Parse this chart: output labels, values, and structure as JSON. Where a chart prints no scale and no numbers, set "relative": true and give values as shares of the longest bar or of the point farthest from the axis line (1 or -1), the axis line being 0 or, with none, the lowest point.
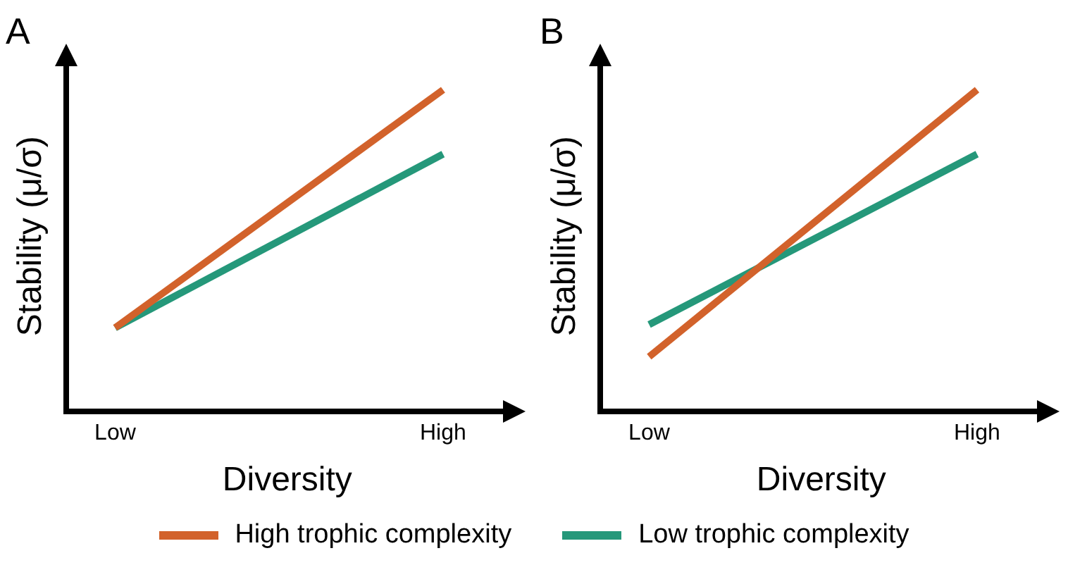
{
  "chart_data": [
    {
      "type": "line",
      "title": "A",
      "xlabel": "Diversity",
      "ylabel": "Stability (μ/σ)",
      "categories": [
        "Low",
        "High"
      ],
      "relative": true,
      "legend": "bottom",
      "grid": false,
      "marker": "none",
      "line_style": "solid",
      "series": [
        {
          "name": "High trophic complexity",
          "color": "#d2622b",
          "values": [
            0.26,
            1
          ]
        },
        {
          "name": "Low trophic complexity",
          "color": "#25987a",
          "values": [
            0.26,
            0.8
          ]
        }
      ]
    },
    {
      "type": "line",
      "title": "B",
      "xlabel": "Diversity",
      "ylabel": "Stability (μ/σ)",
      "categories": [
        "Low",
        "High"
      ],
      "relative": true,
      "grid": false,
      "marker": "none",
      "line_style": "solid",
      "series": [
        {
          "color": "#d2622b",
          "values": [
            0.17,
            1
          ]
        },
        {
          "color": "#25987a",
          "values": [
            0.27,
            0.8
          ]
        }
      ]
    }
  ]
}
